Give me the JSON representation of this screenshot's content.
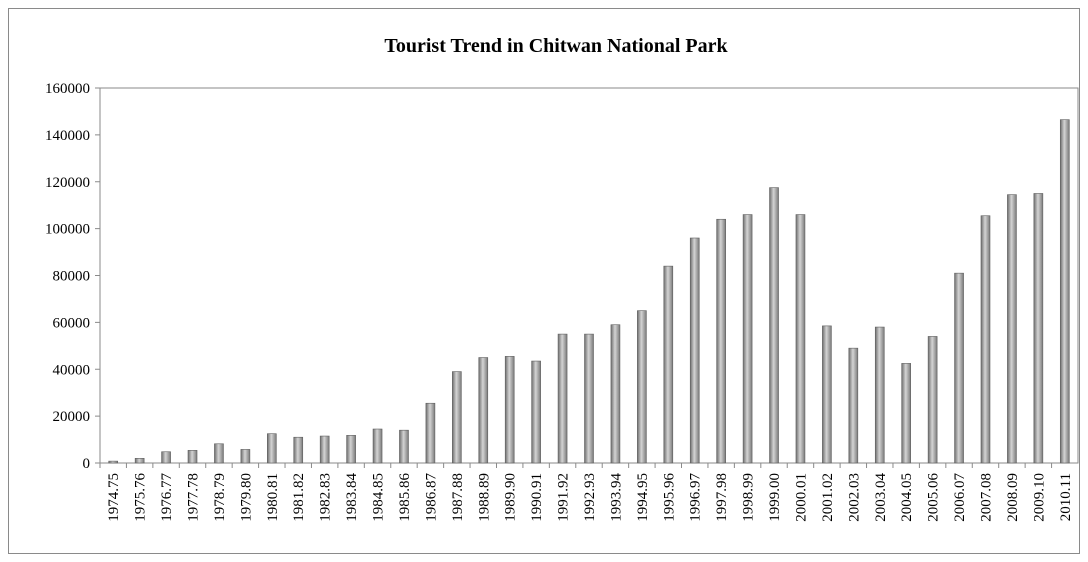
{
  "chart_data": {
    "type": "bar",
    "title": "Tourist Trend in Chitwan National Park",
    "xlabel": "",
    "ylabel": "",
    "ylim": [
      0,
      160000
    ],
    "yticks": [
      0,
      20000,
      40000,
      60000,
      80000,
      100000,
      120000,
      140000,
      160000
    ],
    "ytick_labels": [
      "0",
      "20000",
      "40000",
      "60000",
      "80000",
      "100000",
      "120000",
      "140000",
      "160000"
    ],
    "grid": false,
    "legend": "none",
    "bar_color": "#8c8c8c",
    "categories": [
      "1974.75",
      "1975.76",
      "1976.77",
      "1977.78",
      "1978.79",
      "1979.80",
      "1980.81",
      "1981.82",
      "1982.83",
      "1983.84",
      "1984.85",
      "1985.86",
      "1986.87",
      "1987.88",
      "1988.89",
      "1989.90",
      "1990.91",
      "1991.92",
      "1992.93",
      "1993.94",
      "1994.95",
      "1995.96",
      "1996.97",
      "1997.98",
      "1998.99",
      "1999.00",
      "2000.01",
      "2001.02",
      "2002.03",
      "2003.04",
      "2004.05",
      "2005.06",
      "2006.07",
      "2007.08",
      "2008.09",
      "2009.10",
      "2010.11"
    ],
    "values": [
      800,
      2000,
      4800,
      5400,
      8200,
      5800,
      12500,
      11000,
      11500,
      11800,
      14500,
      14000,
      25500,
      39000,
      45000,
      45500,
      43500,
      55000,
      55000,
      59000,
      65000,
      84000,
      96000,
      104000,
      106000,
      117500,
      106000,
      58500,
      49000,
      58000,
      42500,
      54000,
      81000,
      105500,
      114500,
      115000,
      146500
    ]
  }
}
